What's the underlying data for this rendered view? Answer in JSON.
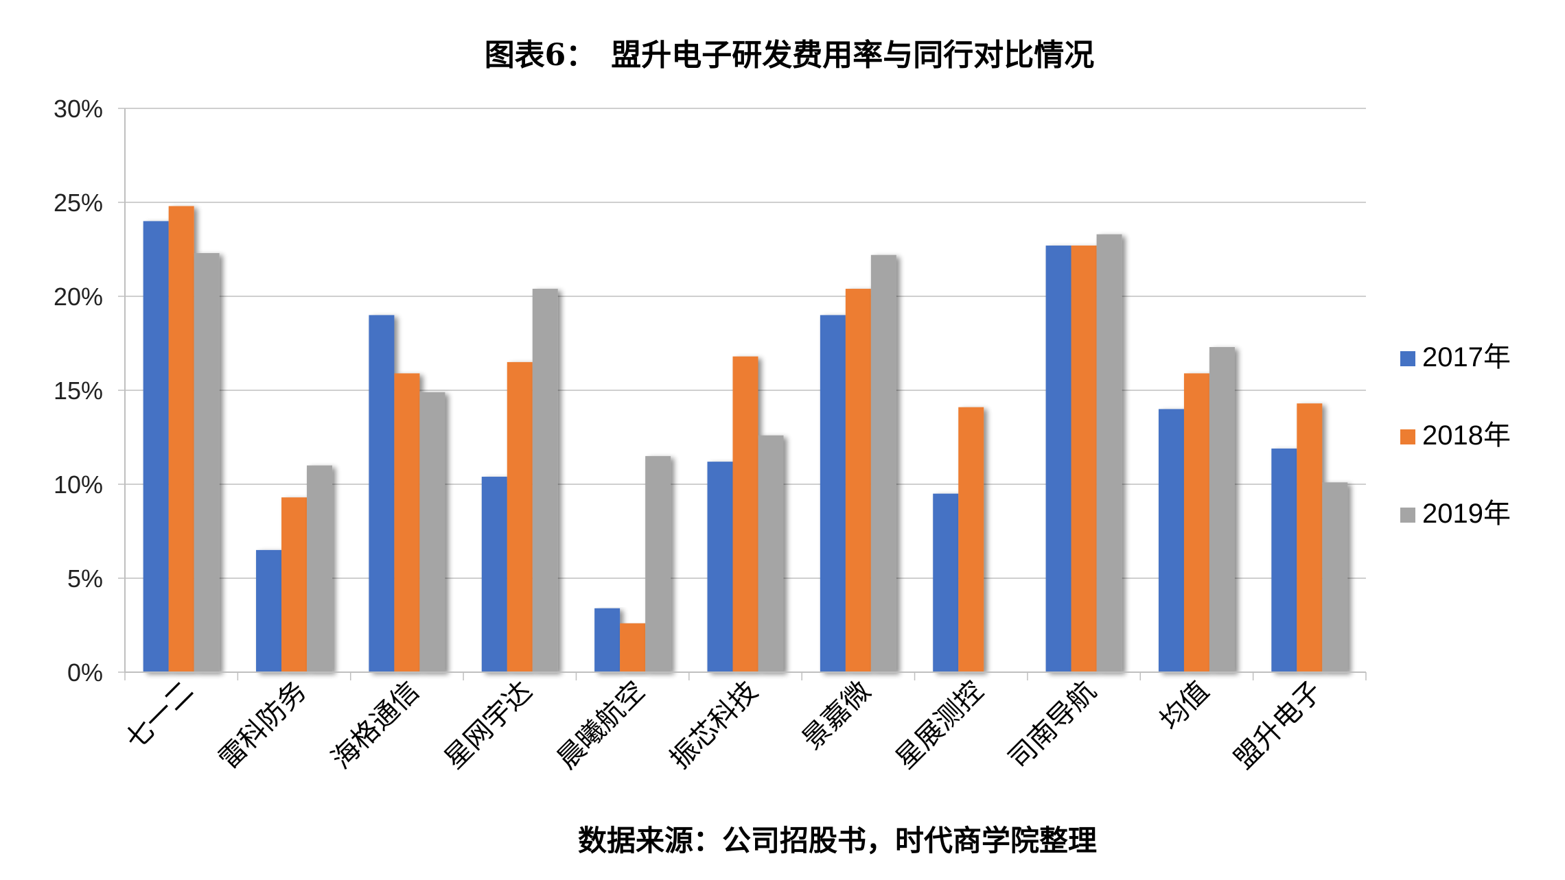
{
  "chart_data": {
    "type": "bar",
    "title": "图表6：　盟升电子研发费用率与同行对比情况",
    "source": "数据来源：公司招股书，时代商学院整理",
    "categories": [
      "七一二",
      "雷科防务",
      "海格通信",
      "星网宇达",
      "晨曦航空",
      "振芯科技",
      "景嘉微",
      "星展测控",
      "司南导航",
      "均值",
      "盟升电子"
    ],
    "series": [
      {
        "name": "2017年",
        "color": "#4472C4",
        "values": [
          24.0,
          6.5,
          19.0,
          10.4,
          3.4,
          11.2,
          19.0,
          9.5,
          22.7,
          14.0,
          11.9
        ]
      },
      {
        "name": "2018年",
        "color": "#ED7D31",
        "values": [
          24.8,
          9.3,
          15.9,
          16.5,
          2.6,
          16.8,
          20.4,
          14.1,
          22.7,
          15.9,
          14.3
        ]
      },
      {
        "name": "2019年",
        "color": "#A5A5A5",
        "values": [
          22.3,
          11.0,
          14.9,
          20.4,
          11.5,
          12.6,
          22.2,
          null,
          23.3,
          17.3,
          10.1
        ]
      }
    ],
    "yticks": [
      "0%",
      "5%",
      "10%",
      "15%",
      "20%",
      "25%",
      "30%"
    ],
    "ylim": [
      0,
      30
    ],
    "grid": true,
    "legend_position": "right"
  }
}
